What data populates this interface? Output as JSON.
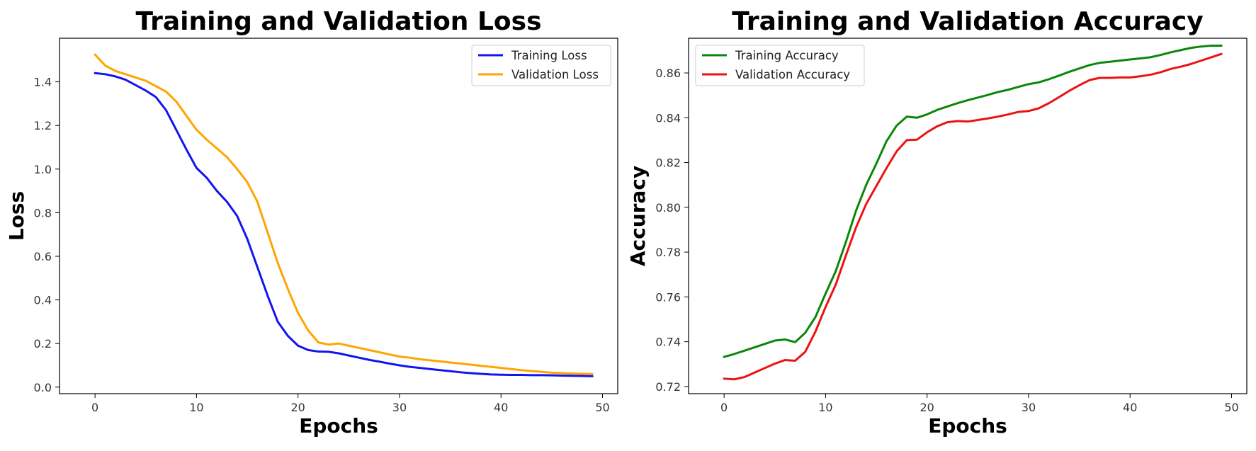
{
  "chart_data": [
    {
      "type": "line",
      "title": "Training and Validation Loss",
      "xlabel": "Epochs",
      "ylabel": "Loss",
      "xlim": [
        -3.5,
        51.5
      ],
      "ylim": [
        -0.03,
        1.6
      ],
      "xticks": [
        0,
        10,
        20,
        30,
        40,
        50
      ],
      "yticks": [
        0.0,
        0.2,
        0.4,
        0.6,
        0.8,
        1.0,
        1.2,
        1.4
      ],
      "ytick_labels": [
        "0.0",
        "0.2",
        "0.4",
        "0.6",
        "0.8",
        "1.0",
        "1.2",
        "1.4"
      ],
      "legend_position": "top-right",
      "series": [
        {
          "name": "Training Loss",
          "color": "#1414f0",
          "values": [
            1.44,
            1.435,
            1.425,
            1.41,
            1.385,
            1.36,
            1.33,
            1.27,
            1.18,
            1.09,
            1.005,
            0.96,
            0.9,
            0.85,
            0.785,
            0.68,
            0.55,
            0.42,
            0.3,
            0.235,
            0.19,
            0.17,
            0.163,
            0.162,
            0.155,
            0.145,
            0.135,
            0.125,
            0.117,
            0.108,
            0.1,
            0.093,
            0.088,
            0.083,
            0.078,
            0.073,
            0.068,
            0.064,
            0.061,
            0.058,
            0.057,
            0.056,
            0.056,
            0.055,
            0.055,
            0.054,
            0.053,
            0.052,
            0.051,
            0.05
          ]
        },
        {
          "name": "Validation Loss",
          "color": "#ffa500",
          "values": [
            1.525,
            1.475,
            1.45,
            1.435,
            1.42,
            1.405,
            1.38,
            1.355,
            1.31,
            1.245,
            1.18,
            1.135,
            1.095,
            1.055,
            1.0,
            0.94,
            0.85,
            0.71,
            0.57,
            0.45,
            0.34,
            0.26,
            0.205,
            0.195,
            0.2,
            0.19,
            0.18,
            0.17,
            0.16,
            0.15,
            0.14,
            0.135,
            0.128,
            0.123,
            0.118,
            0.113,
            0.108,
            0.103,
            0.098,
            0.093,
            0.088,
            0.083,
            0.078,
            0.074,
            0.07,
            0.066,
            0.064,
            0.062,
            0.061,
            0.06
          ]
        }
      ]
    },
    {
      "type": "line",
      "title": "Training and Validation Accuracy",
      "xlabel": "Epochs",
      "ylabel": "Accuracy",
      "xlim": [
        -3.5,
        51.5
      ],
      "ylim": [
        0.7168,
        0.8755
      ],
      "xticks": [
        0,
        10,
        20,
        30,
        40,
        50
      ],
      "yticks": [
        0.72,
        0.74,
        0.76,
        0.78,
        0.8,
        0.82,
        0.84,
        0.86
      ],
      "ytick_labels": [
        "0.72",
        "0.74",
        "0.76",
        "0.78",
        "0.80",
        "0.82",
        "0.84",
        "0.86"
      ],
      "legend_position": "top-left",
      "series": [
        {
          "name": "Training Accuracy",
          "color": "#0a870a",
          "values": [
            0.7332,
            0.7345,
            0.736,
            0.7375,
            0.739,
            0.7405,
            0.741,
            0.7398,
            0.744,
            0.751,
            0.7615,
            0.7715,
            0.7845,
            0.7985,
            0.81,
            0.8195,
            0.8295,
            0.8365,
            0.8405,
            0.84,
            0.8415,
            0.8435,
            0.845,
            0.8465,
            0.8478,
            0.849,
            0.8502,
            0.8515,
            0.8525,
            0.8538,
            0.855,
            0.8558,
            0.8572,
            0.8588,
            0.8605,
            0.862,
            0.8635,
            0.8645,
            0.865,
            0.8655,
            0.866,
            0.8665,
            0.867,
            0.868,
            0.8692,
            0.8702,
            0.8712,
            0.8718,
            0.8722,
            0.8722
          ]
        },
        {
          "name": "Validation Accuracy",
          "color": "#ee1111",
          "values": [
            0.7235,
            0.7232,
            0.7242,
            0.7262,
            0.7282,
            0.7302,
            0.7318,
            0.7315,
            0.7355,
            0.7445,
            0.7555,
            0.7655,
            0.7785,
            0.791,
            0.8015,
            0.8095,
            0.8175,
            0.825,
            0.83,
            0.8302,
            0.8335,
            0.8362,
            0.838,
            0.8385,
            0.8383,
            0.839,
            0.8397,
            0.8405,
            0.8415,
            0.8426,
            0.843,
            0.8442,
            0.8465,
            0.8492,
            0.852,
            0.8545,
            0.8568,
            0.8578,
            0.8578,
            0.858,
            0.858,
            0.8585,
            0.8592,
            0.8603,
            0.8618,
            0.8628,
            0.864,
            0.8655,
            0.867,
            0.8685
          ]
        }
      ]
    }
  ]
}
